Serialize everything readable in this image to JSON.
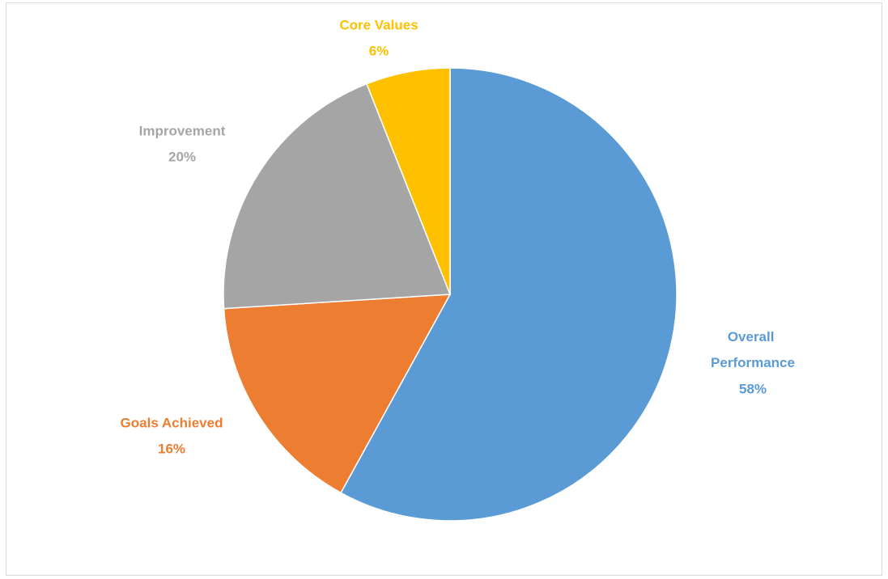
{
  "chart_data": {
    "type": "pie",
    "categories": [
      "Overall Performance",
      "Goals Achieved",
      "Improvement",
      "Core Values"
    ],
    "values": [
      58,
      16,
      20,
      6
    ],
    "value_labels": [
      "58%",
      "16%",
      "20%",
      "6%"
    ],
    "colors": [
      "#5b9bd5",
      "#ed7d31",
      "#a5a5a5",
      "#ffc000"
    ]
  }
}
